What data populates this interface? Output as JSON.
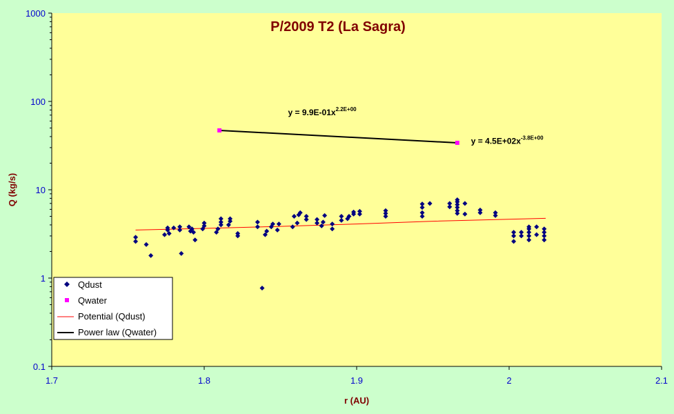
{
  "chart_data": {
    "type": "scatter",
    "title": "P/2009 T2 (La Sagra)",
    "xlabel": "r (AU)",
    "ylabel": "Q (kg/s)",
    "xlim": [
      1.7,
      2.1
    ],
    "ylim": [
      0.1,
      1000
    ],
    "yscale": "log",
    "x_ticks": [
      "1.7",
      "1.8",
      "1.9",
      "2",
      "2.1"
    ],
    "y_ticks": [
      "0.1",
      "1",
      "10",
      "100",
      "1000"
    ],
    "grid": false,
    "legend_position": "bottom-left",
    "plot_background": "#ffff99",
    "series": [
      {
        "name": "Qdust",
        "kind": "scatter",
        "color": "#000080",
        "marker": "diamond",
        "points": [
          [
            1.755,
            2.9
          ],
          [
            1.755,
            2.6
          ],
          [
            1.762,
            2.4
          ],
          [
            1.765,
            1.8
          ],
          [
            1.774,
            3.1
          ],
          [
            1.776,
            3.5
          ],
          [
            1.776,
            3.7
          ],
          [
            1.777,
            3.2
          ],
          [
            1.78,
            3.7
          ],
          [
            1.784,
            3.5
          ],
          [
            1.784,
            3.8
          ],
          [
            1.785,
            1.9
          ],
          [
            1.79,
            3.8
          ],
          [
            1.791,
            3.4
          ],
          [
            1.792,
            3.6
          ],
          [
            1.793,
            3.3
          ],
          [
            1.794,
            2.7
          ],
          [
            1.799,
            3.6
          ],
          [
            1.8,
            3.9
          ],
          [
            1.8,
            4.2
          ],
          [
            1.808,
            3.3
          ],
          [
            1.809,
            3.6
          ],
          [
            1.811,
            4.0
          ],
          [
            1.811,
            4.3
          ],
          [
            1.811,
            4.7
          ],
          [
            1.816,
            4.0
          ],
          [
            1.817,
            4.4
          ],
          [
            1.817,
            4.7
          ],
          [
            1.822,
            3.0
          ],
          [
            1.822,
            3.2
          ],
          [
            1.835,
            3.8
          ],
          [
            1.835,
            4.3
          ],
          [
            1.838,
            0.77
          ],
          [
            1.84,
            3.1
          ],
          [
            1.841,
            3.4
          ],
          [
            1.844,
            3.8
          ],
          [
            1.845,
            4.1
          ],
          [
            1.848,
            3.5
          ],
          [
            1.849,
            4.1
          ],
          [
            1.858,
            3.8
          ],
          [
            1.859,
            5.0
          ],
          [
            1.861,
            4.2
          ],
          [
            1.862,
            5.2
          ],
          [
            1.863,
            5.5
          ],
          [
            1.867,
            4.6
          ],
          [
            1.867,
            5.0
          ],
          [
            1.874,
            4.2
          ],
          [
            1.874,
            4.6
          ],
          [
            1.877,
            3.9
          ],
          [
            1.878,
            4.3
          ],
          [
            1.879,
            5.1
          ],
          [
            1.884,
            3.6
          ],
          [
            1.884,
            4.1
          ],
          [
            1.89,
            4.5
          ],
          [
            1.89,
            5.0
          ],
          [
            1.894,
            4.7
          ],
          [
            1.895,
            5.0
          ],
          [
            1.898,
            5.3
          ],
          [
            1.898,
            5.6
          ],
          [
            1.902,
            5.3
          ],
          [
            1.902,
            5.7
          ],
          [
            1.919,
            5.0
          ],
          [
            1.919,
            5.4
          ],
          [
            1.919,
            5.8
          ],
          [
            1.943,
            5.0
          ],
          [
            1.943,
            5.5
          ],
          [
            1.943,
            6.3
          ],
          [
            1.943,
            6.9
          ],
          [
            1.948,
            7.0
          ],
          [
            1.961,
            6.4
          ],
          [
            1.961,
            7.0
          ],
          [
            1.966,
            5.4
          ],
          [
            1.966,
            5.8
          ],
          [
            1.966,
            6.3
          ],
          [
            1.966,
            6.8
          ],
          [
            1.966,
            7.3
          ],
          [
            1.966,
            7.7
          ],
          [
            1.971,
            5.3
          ],
          [
            1.971,
            7.0
          ],
          [
            1.981,
            5.5
          ],
          [
            1.981,
            5.9
          ],
          [
            1.991,
            5.1
          ],
          [
            1.991,
            5.5
          ],
          [
            2.003,
            2.6
          ],
          [
            2.003,
            3.0
          ],
          [
            2.003,
            3.3
          ],
          [
            2.008,
            3.0
          ],
          [
            2.008,
            3.3
          ],
          [
            2.013,
            2.7
          ],
          [
            2.013,
            3.0
          ],
          [
            2.013,
            3.3
          ],
          [
            2.013,
            3.6
          ],
          [
            2.013,
            3.8
          ],
          [
            2.018,
            3.1
          ],
          [
            2.018,
            3.8
          ],
          [
            2.023,
            2.7
          ],
          [
            2.023,
            3.0
          ],
          [
            2.023,
            3.3
          ],
          [
            2.023,
            3.6
          ]
        ]
      },
      {
        "name": "Qwater",
        "kind": "scatter",
        "color": "#ff00ff",
        "marker": "square",
        "points": [
          [
            1.81,
            47
          ],
          [
            1.966,
            34
          ]
        ]
      },
      {
        "name": "Potential (Qdust)",
        "kind": "line",
        "color": "#ff0000",
        "points": [
          [
            1.755,
            3.5
          ],
          [
            1.8,
            3.65
          ],
          [
            1.85,
            3.85
          ],
          [
            1.9,
            4.1
          ],
          [
            1.95,
            4.4
          ],
          [
            2.024,
            4.75
          ]
        ]
      },
      {
        "name": "Power law (Qwater)",
        "kind": "line",
        "color": "#000000",
        "points": [
          [
            1.81,
            47
          ],
          [
            1.966,
            34
          ]
        ]
      }
    ],
    "annotations": [
      {
        "id": "eq1",
        "base": "y = 9.9E-01x",
        "exp": "2.2E+00",
        "at": [
          1.855,
          70
        ]
      },
      {
        "id": "eq2",
        "base": "y = 4.5E+02x",
        "exp": "-3.8E+00",
        "at": [
          1.975,
          33
        ]
      }
    ]
  }
}
